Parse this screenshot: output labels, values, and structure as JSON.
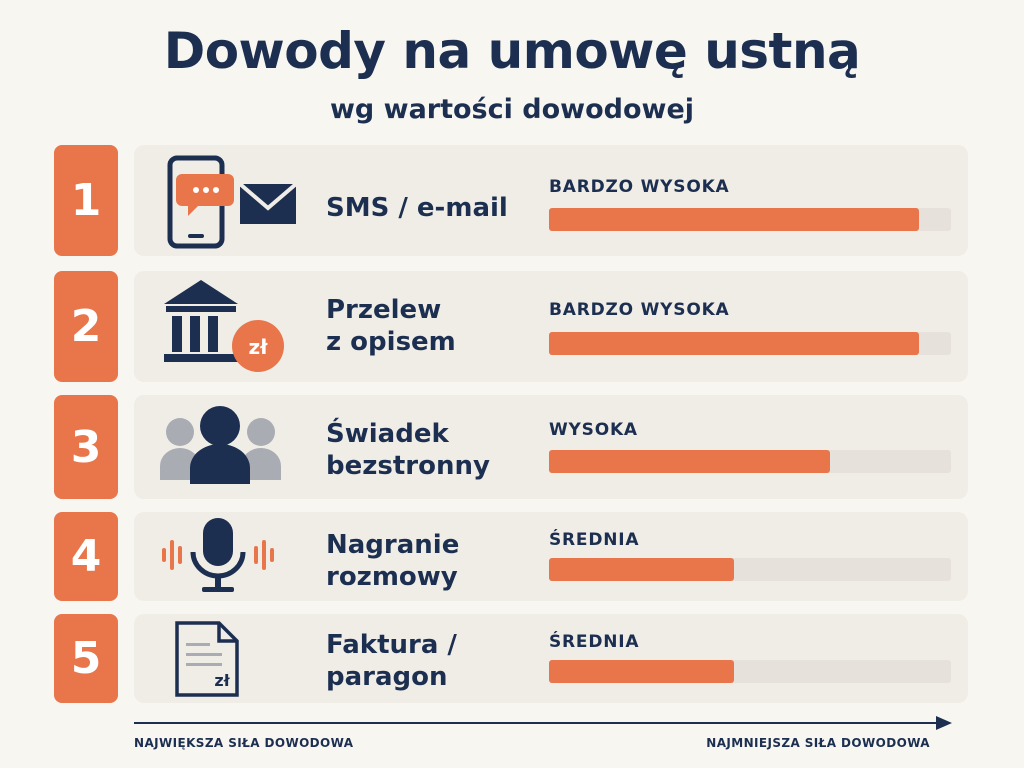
{
  "title": "Dowody na umowę ustną",
  "subtitle": "wg wartości dowodowej",
  "colors": {
    "accent": "#e9754a",
    "navy": "#1c2f50",
    "card": "#f0ede7",
    "track": "#e6e2db"
  },
  "items": [
    {
      "rank": "1",
      "label": "SMS / e-mail",
      "level": "BARDZO WYSOKA",
      "strength_pct": 92,
      "icon": "phone-message-email-icon"
    },
    {
      "rank": "2",
      "label": "Przelew\nz opisem",
      "level": "BARDZO WYSOKA",
      "strength_pct": 92,
      "icon": "bank-transfer-icon",
      "icon_text": "zł"
    },
    {
      "rank": "3",
      "label": "Świadek\nbezstronny",
      "level": "WYSOKA",
      "strength_pct": 70,
      "icon": "witness-people-icon"
    },
    {
      "rank": "4",
      "label": "Nagranie\nrozmowy",
      "level": "ŚREDNIA",
      "strength_pct": 46,
      "icon": "microphone-recording-icon"
    },
    {
      "rank": "5",
      "label": "Faktura /\nparagon",
      "level": "ŚREDNIA",
      "strength_pct": 46,
      "icon": "invoice-document-icon",
      "icon_text": "zł"
    }
  ],
  "axis": {
    "left_label": "NAJWIĘKSZA SIŁA DOWODOWA",
    "right_label": "NAJMNIEJSZA SIŁA DOWODOWA"
  }
}
